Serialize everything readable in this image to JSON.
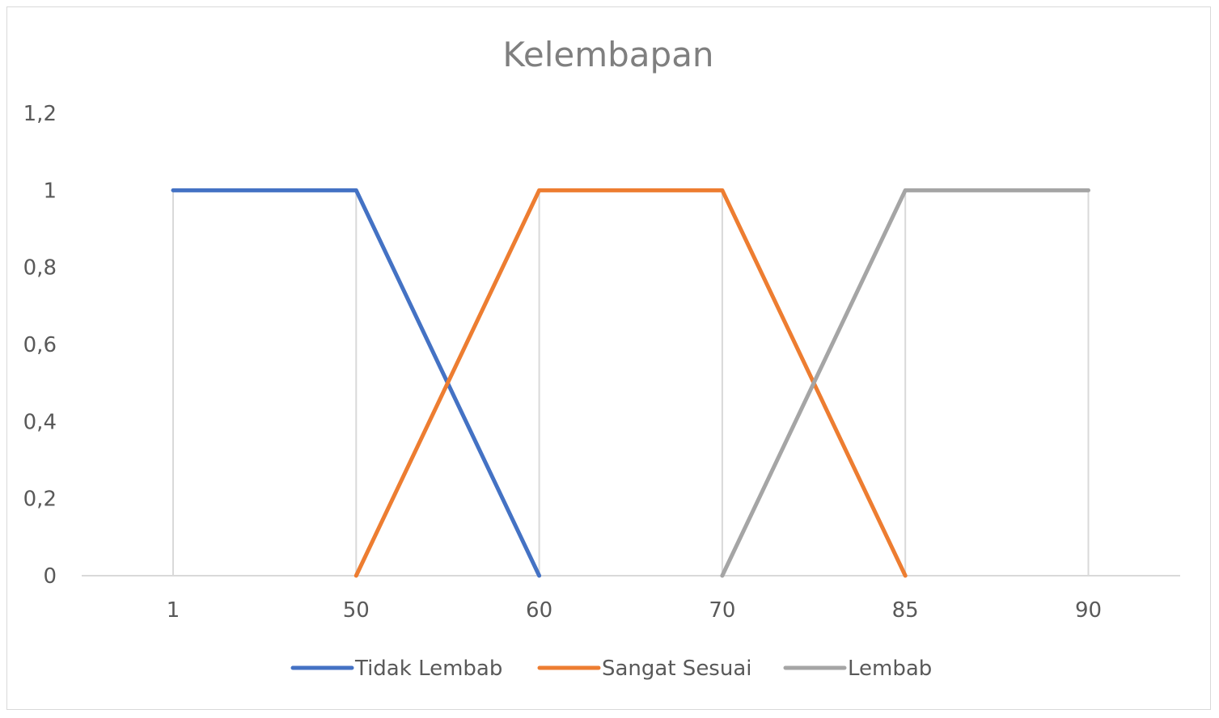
{
  "chart_data": {
    "type": "line",
    "title": "Kelembapan",
    "categories": [
      "1",
      "50",
      "60",
      "70",
      "85",
      "90"
    ],
    "yticks": [
      "0",
      "0,2",
      "0,4",
      "0,6",
      "0,8",
      "1",
      "1,2"
    ],
    "ylim": [
      0,
      1.2
    ],
    "grid": "vertical",
    "legend_position": "bottom",
    "series": [
      {
        "name": "Tidak Lembab",
        "color": "#4472c4",
        "points": [
          [
            0,
            1
          ],
          [
            1,
            1
          ],
          [
            2,
            0
          ]
        ]
      },
      {
        "name": "Sangat Sesuai",
        "color": "#ed7d31",
        "points": [
          [
            1,
            0
          ],
          [
            2,
            1
          ],
          [
            3,
            1
          ],
          [
            4,
            0
          ]
        ]
      },
      {
        "name": "Lembab",
        "color": "#a5a5a5",
        "points": [
          [
            3,
            0
          ],
          [
            4,
            1
          ],
          [
            5,
            1
          ]
        ]
      }
    ]
  }
}
